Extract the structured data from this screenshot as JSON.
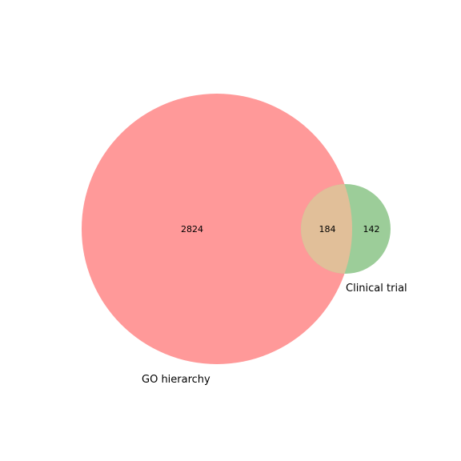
{
  "chart_data": {
    "type": "venn",
    "sets": [
      {
        "name": "GO hierarchy",
        "only": 2824
      },
      {
        "name": "Clinical trial",
        "only": 142
      }
    ],
    "intersection": 184,
    "colors": {
      "set_a": "#ff9999",
      "set_b": "#9ccd99",
      "overlap": "#e1bf99"
    }
  }
}
